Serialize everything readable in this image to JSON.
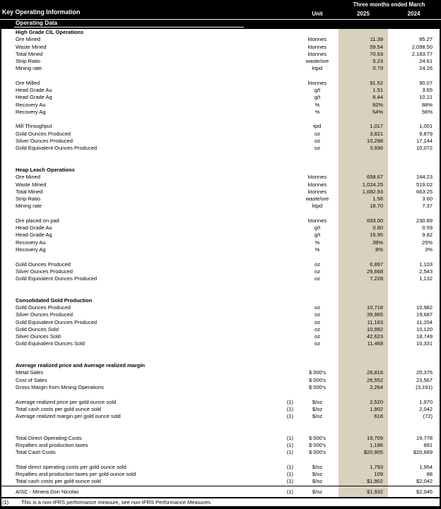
{
  "report": {
    "title": "Key Operating Information",
    "section_label": "Operating Data",
    "period_header": "Three months ended March",
    "unit_header": "Unit",
    "year_2025": "2025",
    "year_2024": "2024"
  },
  "colors": {
    "header_background": "#000000",
    "header_text": "#ffffff",
    "highlight_column_2025": "#d8d1be"
  },
  "table": {
    "rows": [
      {
        "type": "heading",
        "label": "High Grade CIL Operations",
        "note": "",
        "unit": "",
        "v2025": "",
        "v2024": ""
      },
      {
        "type": "data",
        "label": "Ore Mined",
        "note": "",
        "unit": "ktonnes",
        "v2025": "11.39",
        "v2024": "85.27"
      },
      {
        "type": "data",
        "label": "Waste Mined",
        "note": "",
        "unit": "ktonnes",
        "v2025": "59.54",
        "v2024": "2,098.50"
      },
      {
        "type": "data",
        "label": "Total Mined",
        "note": "",
        "unit": "ktonnes",
        "v2025": "70.93",
        "v2024": "2,183.77"
      },
      {
        "type": "data",
        "label": "Strip Ratio",
        "note": "",
        "unit": "waste/ore",
        "v2025": "5.23",
        "v2024": "24.61"
      },
      {
        "type": "data",
        "label": "Mining rate",
        "note": "",
        "unit": "ktpd",
        "v2025": "0.79",
        "v2024": "24.26"
      },
      {
        "type": "blank",
        "label": "",
        "note": "",
        "unit": "",
        "v2025": "",
        "v2024": ""
      },
      {
        "type": "data",
        "label": "Ore Milled",
        "note": "",
        "unit": "ktonnes",
        "v2025": "91.52",
        "v2024": "90.07"
      },
      {
        "type": "data",
        "label": "Head Grade Au",
        "note": "",
        "unit": "g/t",
        "v2025": "1.51",
        "v2024": "3.65"
      },
      {
        "type": "data",
        "label": "Head Grade Ag",
        "note": "",
        "unit": "g/t",
        "v2025": "6.44",
        "v2024": "10.21"
      },
      {
        "type": "data",
        "label": "Recovery Au",
        "note": "",
        "unit": "%",
        "v2025": "92%",
        "v2024": "88%"
      },
      {
        "type": "data",
        "label": "Recovery Ag",
        "note": "",
        "unit": "%",
        "v2025": "54%",
        "v2024": "56%"
      },
      {
        "type": "blank",
        "label": "",
        "note": "",
        "unit": "",
        "v2025": "",
        "v2024": ""
      },
      {
        "type": "data",
        "label": "Mill Throughput",
        "note": "",
        "unit": "tpd",
        "v2025": "1,017",
        "v2024": "1,001"
      },
      {
        "type": "data",
        "label": "Gold Ounces Produced",
        "note": "",
        "unit": "oz",
        "v2025": "3,821",
        "v2024": "9,879"
      },
      {
        "type": "data",
        "label": "Silver Ounces Produced",
        "note": "",
        "unit": "oz",
        "v2025": "10,298",
        "v2024": "17,144"
      },
      {
        "type": "data",
        "label": "Gold Equivalent Ounces Produced",
        "note": "",
        "unit": "oz",
        "v2025": "3,936",
        "v2024": "10,072"
      },
      {
        "type": "blank",
        "label": "",
        "note": "",
        "unit": "",
        "v2025": "",
        "v2024": ""
      },
      {
        "type": "blank",
        "label": "",
        "note": "",
        "unit": "",
        "v2025": "",
        "v2024": ""
      },
      {
        "type": "heading",
        "label": "Heap Leach Operations",
        "note": "",
        "unit": "",
        "v2025": "",
        "v2024": ""
      },
      {
        "type": "data",
        "label": "Ore Mined",
        "note": "",
        "unit": "ktonnes",
        "v2025": "658.67",
        "v2024": "144.23"
      },
      {
        "type": "data",
        "label": "Waste Mined",
        "note": "",
        "unit": "ktonnes",
        "v2025": "1,024.25",
        "v2024": "519.02"
      },
      {
        "type": "data",
        "label": "Total Mined",
        "note": "",
        "unit": "ktonnes",
        "v2025": "1,682.93",
        "v2024": "663.25"
      },
      {
        "type": "data",
        "label": "Strip Ratio",
        "note": "",
        "unit": "waste/ore",
        "v2025": "1.56",
        "v2024": "3.60"
      },
      {
        "type": "data",
        "label": "Mining rate",
        "note": "",
        "unit": "ktpd",
        "v2025": "18.70",
        "v2024": "7.37"
      },
      {
        "type": "blank",
        "label": "",
        "note": "",
        "unit": "",
        "v2025": "",
        "v2024": ""
      },
      {
        "type": "data",
        "label": "Ore placed on pad",
        "note": "",
        "unit": "ktonnes",
        "v2025": "693.00",
        "v2024": "230.89"
      },
      {
        "type": "data",
        "label": "Head Grade Au",
        "note": "",
        "unit": "g/t",
        "v2025": "0.80",
        "v2024": "0.59"
      },
      {
        "type": "data",
        "label": "Head Grade Ag",
        "note": "",
        "unit": "g/t",
        "v2025": "15.95",
        "v2024": "9.82"
      },
      {
        "type": "data",
        "label": "Recovery Au",
        "note": "",
        "unit": "%",
        "v2025": "39%",
        "v2024": "25%"
      },
      {
        "type": "data",
        "label": "Recovery Ag",
        "note": "",
        "unit": "%",
        "v2025": "8%",
        "v2024": "3%"
      },
      {
        "type": "blank",
        "label": "",
        "note": "",
        "unit": "",
        "v2025": "",
        "v2024": ""
      },
      {
        "type": "data",
        "label": "Gold Ounces Produced",
        "note": "",
        "unit": "oz",
        "v2025": "6,897",
        "v2024": "1,103"
      },
      {
        "type": "data",
        "label": "Silver Ounces Produced",
        "note": "",
        "unit": "oz",
        "v2025": "29,668",
        "v2024": "2,543"
      },
      {
        "type": "data",
        "label": "Gold Equivalent Ounces Produced",
        "note": "",
        "unit": "oz",
        "v2025": "7,228",
        "v2024": "1,132"
      },
      {
        "type": "blank",
        "label": "",
        "note": "",
        "unit": "",
        "v2025": "",
        "v2024": ""
      },
      {
        "type": "blank",
        "label": "",
        "note": "",
        "unit": "",
        "v2025": "",
        "v2024": ""
      },
      {
        "type": "heading",
        "label": "Consolidated Gold Production",
        "note": "",
        "unit": "",
        "v2025": "",
        "v2024": ""
      },
      {
        "type": "data",
        "label": "Gold Ounces Produced",
        "note": "",
        "unit": "oz",
        "v2025": "10,718",
        "v2024": "10,982"
      },
      {
        "type": "data",
        "label": "Silver Ounces Produced",
        "note": "",
        "unit": "oz",
        "v2025": "39,965",
        "v2024": "19,687"
      },
      {
        "type": "data",
        "label": "Gold Equivalent Ounces Produced",
        "note": "",
        "unit": "oz",
        "v2025": "11,163",
        "v2024": "11,204"
      },
      {
        "type": "data",
        "label": "Gold Ounces Sold",
        "note": "",
        "unit": "oz",
        "v2025": "10,992",
        "v2024": "10,120"
      },
      {
        "type": "data",
        "label": "Silver Ounces Sold",
        "note": "",
        "unit": "oz",
        "v2025": "42,623",
        "v2024": "18,749"
      },
      {
        "type": "data",
        "label": "Gold Equivalent Ounces Sold",
        "note": "",
        "unit": "oz",
        "v2025": "11,468",
        "v2024": "10,331"
      },
      {
        "type": "blank",
        "label": "",
        "note": "",
        "unit": "",
        "v2025": "",
        "v2024": ""
      },
      {
        "type": "blank",
        "label": "",
        "note": "",
        "unit": "",
        "v2025": "",
        "v2024": ""
      },
      {
        "type": "heading",
        "label": "Average realized price and Average realized margin",
        "note": "",
        "unit": "",
        "v2025": "",
        "v2024": ""
      },
      {
        "type": "data",
        "label": "Metal Sales",
        "note": "",
        "unit": "$ 000's",
        "v2025": "28,816",
        "v2024": "20,376"
      },
      {
        "type": "data",
        "label": "Cost of Sales",
        "note": "",
        "unit": "$ 000's",
        "v2025": "26,552",
        "v2024": "23,567"
      },
      {
        "type": "data",
        "label": "Gross Margin from Mining Operations",
        "note": "",
        "unit": "$ 000's",
        "v2025": "2,264",
        "v2024": "(3,191)"
      },
      {
        "type": "blank",
        "label": "",
        "note": "",
        "unit": "",
        "v2025": "",
        "v2024": ""
      },
      {
        "type": "data",
        "label": "Average realized price per gold ounce sold",
        "note": "(1)",
        "unit": "$/oz",
        "v2025": "2,520",
        "v2024": "1,970"
      },
      {
        "type": "data",
        "label": "Total cash costs per gold ounce sold",
        "note": "(1)",
        "unit": "$/oz",
        "v2025": "1,902",
        "v2024": "2,042"
      },
      {
        "type": "data",
        "label": "Average realized margin per gold ounce sold",
        "note": "(1)",
        "unit": "$/oz",
        "v2025": "618",
        "v2024": "(72)"
      },
      {
        "type": "blank",
        "label": "",
        "note": "",
        "unit": "",
        "v2025": "",
        "v2024": ""
      },
      {
        "type": "blank",
        "label": "",
        "note": "",
        "unit": "",
        "v2025": "",
        "v2024": ""
      },
      {
        "type": "data",
        "label": "Total Direct Operating Costs",
        "note": "(1)",
        "unit": "$ 000's",
        "v2025": "19,709",
        "v2024": "19,778"
      },
      {
        "type": "data",
        "label": "Royalties and production taxes",
        "note": "(1)",
        "unit": "$ 000's",
        "v2025": "1,196",
        "v2024": "891"
      },
      {
        "type": "data",
        "label": "Total Cash Costs",
        "note": "(1)",
        "unit": "$ 000's",
        "v2025": "$20,905",
        "v2024": "$20,669"
      },
      {
        "type": "blank",
        "label": "",
        "note": "",
        "unit": "",
        "v2025": "",
        "v2024": ""
      },
      {
        "type": "data",
        "label": "Total direct operating costs per gold ounce sold",
        "note": "(1)",
        "unit": "$/oz",
        "v2025": "1,793",
        "v2024": "1,954"
      },
      {
        "type": "data",
        "label": "Royalties and production taxes per gold ounce sold",
        "note": "(1)",
        "unit": "$/oz",
        "v2025": "109",
        "v2024": "88"
      },
      {
        "type": "data",
        "label": "Total cash costs per gold ounce sold",
        "note": "(1)",
        "unit": "$/oz",
        "v2025": "$1,902",
        "v2024": "$2,042"
      }
    ],
    "aisc": {
      "label": "AISC - Minera Don Nicolas",
      "note": "(1)",
      "unit": "$/oz",
      "v2025": "$1,932",
      "v2024": "$2,045"
    }
  },
  "footnote": {
    "marker": "(1)",
    "text": "This is a non-IFRS performance measure, see non-IFRS Performance Measures"
  }
}
